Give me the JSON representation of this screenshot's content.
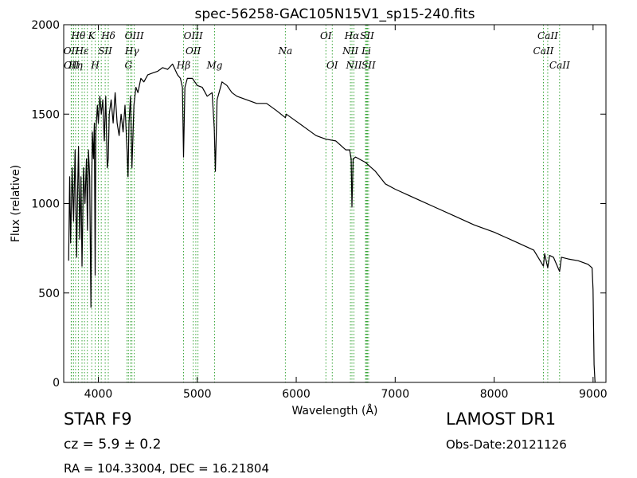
{
  "chart_data": {
    "type": "line",
    "title": "spec-56258-GAC105N15V1_sp15-240.fits",
    "xlabel": "Wavelength (Å)",
    "ylabel": "Flux (relative)",
    "xlim": [
      3650,
      9130
    ],
    "ylim": [
      0,
      2000
    ],
    "xticks": [
      4000,
      5000,
      6000,
      7000,
      8000,
      9000
    ],
    "xtick_labels": [
      "4000",
      "5000",
      "6000",
      "7000",
      "8000",
      "9000"
    ],
    "yticks": [
      0,
      500,
      1000,
      1500,
      2000
    ],
    "ytick_labels": [
      "0",
      "500",
      "1000",
      "1500",
      "2000"
    ],
    "line_color": "#000000",
    "marker_color": "#3aa63a",
    "series": [
      {
        "x": [
          3700,
          3710,
          3720,
          3735,
          3750,
          3765,
          3780,
          3790,
          3800,
          3812,
          3825,
          3835,
          3850,
          3865,
          3880,
          3890,
          3900,
          3912,
          3925,
          3933,
          3940,
          3950,
          3960,
          3968,
          3975,
          3990,
          4000,
          4015,
          4030,
          4045,
          4060,
          4075,
          4090,
          4101,
          4110,
          4130,
          4150,
          4170,
          4190,
          4210,
          4230,
          4250,
          4270,
          4290,
          4300,
          4310,
          4325,
          4340,
          4360,
          4380,
          4400,
          4430,
          4460,
          4500,
          4550,
          4600,
          4650,
          4700,
          4750,
          4800,
          4830,
          4850,
          4861,
          4875,
          4900,
          4950,
          5000,
          5050,
          5100,
          5150,
          5172,
          5183,
          5200,
          5250,
          5300,
          5350,
          5400,
          5500,
          5600,
          5700,
          5800,
          5890,
          5900,
          6000,
          6100,
          6200,
          6300,
          6400,
          6500,
          6540,
          6555,
          6563,
          6575,
          6600,
          6700,
          6800,
          6900,
          7000,
          7200,
          7400,
          7600,
          7800,
          8000,
          8200,
          8400,
          8498,
          8510,
          8542,
          8560,
          8600,
          8662,
          8680,
          8750,
          8850,
          8950,
          8990,
          9000,
          9010,
          9020
        ],
        "y": [
          680,
          1150,
          780,
          1200,
          900,
          1300,
          700,
          1050,
          1320,
          800,
          1150,
          650,
          1200,
          1000,
          1250,
          850,
          1300,
          1150,
          420,
          1100,
          1400,
          1250,
          1450,
          600,
          1400,
          1550,
          1450,
          1600,
          1500,
          1580,
          1350,
          1600,
          1200,
          1250,
          1500,
          1580,
          1450,
          1620,
          1450,
          1380,
          1500,
          1400,
          1550,
          1300,
          1150,
          1450,
          1600,
          1200,
          1550,
          1650,
          1620,
          1700,
          1680,
          1720,
          1730,
          1740,
          1760,
          1750,
          1780,
          1720,
          1700,
          1650,
          1260,
          1650,
          1700,
          1700,
          1660,
          1650,
          1600,
          1620,
          1420,
          1180,
          1580,
          1680,
          1660,
          1620,
          1600,
          1580,
          1560,
          1560,
          1520,
          1480,
          1500,
          1460,
          1420,
          1380,
          1360,
          1350,
          1300,
          1300,
          1250,
          980,
          1250,
          1260,
          1230,
          1180,
          1110,
          1080,
          1030,
          980,
          930,
          880,
          840,
          790,
          740,
          650,
          720,
          640,
          710,
          700,
          620,
          700,
          690,
          680,
          660,
          640,
          520,
          100,
          0
        ]
      }
    ],
    "line_markers": [
      {
        "label": "Hθ",
        "x": 3798,
        "row": 1
      },
      {
        "label": "K",
        "x": 3933,
        "row": 1
      },
      {
        "label": "Hδ",
        "x": 4101,
        "row": 1
      },
      {
        "label": "OIII",
        "x": 4363,
        "row": 1
      },
      {
        "label": "OIII",
        "x": 4959,
        "row": 1
      },
      {
        "label": "OI",
        "x": 6300,
        "row": 1
      },
      {
        "label": "Hα",
        "x": 6563,
        "row": 1
      },
      {
        "label": "SII",
        "x": 6716,
        "row": 1
      },
      {
        "label": "CaII",
        "x": 8542,
        "row": 1
      },
      {
        "label": "OII",
        "x": 3726,
        "row": 2
      },
      {
        "label": "Hε",
        "x": 3835,
        "row": 2
      },
      {
        "label": "SII",
        "x": 4069,
        "row": 2
      },
      {
        "label": "Hγ",
        "x": 4340,
        "row": 2
      },
      {
        "label": "OII",
        "x": 4959,
        "row": 2
      },
      {
        "label": "Na",
        "x": 5890,
        "row": 2
      },
      {
        "label": "NII",
        "x": 6548,
        "row": 2
      },
      {
        "label": "Li",
        "x": 6708,
        "row": 2
      },
      {
        "label": "CaII",
        "x": 8498,
        "row": 2
      },
      {
        "label": "OII",
        "x": 3729,
        "row": 3
      },
      {
        "label": "Hη",
        "x": 3770,
        "row": 3
      },
      {
        "label": "H",
        "x": 3968,
        "row": 3
      },
      {
        "label": "G",
        "x": 4304,
        "row": 3
      },
      {
        "label": "Hβ",
        "x": 4861,
        "row": 3
      },
      {
        "label": "Mg",
        "x": 5175,
        "row": 3
      },
      {
        "label": "OI",
        "x": 6364,
        "row": 3
      },
      {
        "label": "NII",
        "x": 6583,
        "row": 3
      },
      {
        "label": "SII",
        "x": 6731,
        "row": 3
      },
      {
        "label": "CaII",
        "x": 8662,
        "row": 3
      }
    ],
    "extra_lines": [
      3750,
      3889,
      3860,
      4000,
      4030,
      4290,
      4325,
      4985,
      5007,
      6700,
      6720
    ]
  },
  "footer": {
    "object": "STAR   F9",
    "cz": "cz = 5.9 ± 0.2",
    "coords": "RA = 104.33004, DEC = 16.21804",
    "survey": "LAMOST DR1",
    "obs_date": "Obs-Date:20121126"
  }
}
